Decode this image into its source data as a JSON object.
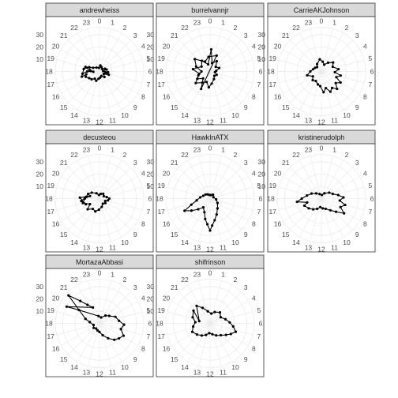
{
  "chart_data": {
    "type": "polar-line",
    "facet_layout": "3x3",
    "angular_axis": {
      "labels": [
        "0",
        "1",
        "2",
        "3",
        "4",
        "5",
        "6",
        "7",
        "8",
        "9",
        "10",
        "11",
        "12",
        "13",
        "14",
        "15",
        "16",
        "17",
        "18",
        "19",
        "20",
        "21",
        "22",
        "23"
      ]
    },
    "radial_axis": {
      "range": [
        0,
        36
      ],
      "ticks": [
        10,
        20,
        30
      ],
      "tick_labels": [
        "10",
        "20",
        "30"
      ]
    },
    "grid": true,
    "panels": [
      {
        "name": "andrewheiss",
        "points": [
          {
            "hour": 18.0,
            "value": 10
          },
          {
            "hour": 17.5,
            "value": 14
          },
          {
            "hour": 18.4,
            "value": 8
          },
          {
            "hour": 19.2,
            "value": 12
          },
          {
            "hour": 20.0,
            "value": 6
          },
          {
            "hour": 21.5,
            "value": 4
          },
          {
            "hour": 23.5,
            "value": 3
          },
          {
            "hour": 0.5,
            "value": 5
          },
          {
            "hour": 1.6,
            "value": 4
          },
          {
            "hour": 3.0,
            "value": 3
          },
          {
            "hour": 4.2,
            "value": 5
          },
          {
            "hour": 5.0,
            "value": 6
          },
          {
            "hour": 5.6,
            "value": 3
          },
          {
            "hour": 6.3,
            "value": 7
          },
          {
            "hour": 6.8,
            "value": 5
          },
          {
            "hour": 7.3,
            "value": 8
          },
          {
            "hour": 8.0,
            "value": 4
          },
          {
            "hour": 9.2,
            "value": 6
          },
          {
            "hour": 10.5,
            "value": 4
          },
          {
            "hour": 11.6,
            "value": 5
          },
          {
            "hour": 12.5,
            "value": 6
          },
          {
            "hour": 13.3,
            "value": 8
          },
          {
            "hour": 14.2,
            "value": 7
          },
          {
            "hour": 15.0,
            "value": 9
          },
          {
            "hour": 15.8,
            "value": 10
          },
          {
            "hour": 16.6,
            "value": 12
          },
          {
            "hour": 17.2,
            "value": 11
          },
          {
            "hour": 16.9,
            "value": 15
          },
          {
            "hour": 18.6,
            "value": 13
          },
          {
            "hour": 19.5,
            "value": 9
          },
          {
            "hour": 18.2,
            "value": 7
          },
          {
            "hour": 17.8,
            "value": 5
          }
        ]
      },
      {
        "name": "burrelvannjr",
        "points": [
          {
            "hour": 16.0,
            "value": 12
          },
          {
            "hour": 17.2,
            "value": 9
          },
          {
            "hour": 18.5,
            "value": 14
          },
          {
            "hour": 20.0,
            "value": 8
          },
          {
            "hour": 21.5,
            "value": 11
          },
          {
            "hour": 23.0,
            "value": 6
          },
          {
            "hour": 0.2,
            "value": 18
          },
          {
            "hour": 0.9,
            "value": 7
          },
          {
            "hour": 2.2,
            "value": 10
          },
          {
            "hour": 3.4,
            "value": 6
          },
          {
            "hour": 4.6,
            "value": 8
          },
          {
            "hour": 5.6,
            "value": 5
          },
          {
            "hour": 6.5,
            "value": 4
          },
          {
            "hour": 7.8,
            "value": 6
          },
          {
            "hour": 9.0,
            "value": 5
          },
          {
            "hour": 10.2,
            "value": 7
          },
          {
            "hour": 11.5,
            "value": 10
          },
          {
            "hour": 12.3,
            "value": 13
          },
          {
            "hour": 13.2,
            "value": 9
          },
          {
            "hour": 14.3,
            "value": 11
          },
          {
            "hour": 15.4,
            "value": 15
          },
          {
            "hour": 16.8,
            "value": 10
          },
          {
            "hour": 18.0,
            "value": 7
          },
          {
            "hour": 19.3,
            "value": 12
          },
          {
            "hour": 20.6,
            "value": 16
          },
          {
            "hour": 22.2,
            "value": 9
          },
          {
            "hour": 23.6,
            "value": 12
          },
          {
            "hour": 1.5,
            "value": 14
          },
          {
            "hour": 13.8,
            "value": 16
          },
          {
            "hour": 15.0,
            "value": 8
          }
        ]
      },
      {
        "name": "CarrieAKJohnson",
        "points": [
          {
            "hour": 23.5,
            "value": 10
          },
          {
            "hour": 0.5,
            "value": 8
          },
          {
            "hour": 1.5,
            "value": 6
          },
          {
            "hour": 2.5,
            "value": 9
          },
          {
            "hour": 3.5,
            "value": 12
          },
          {
            "hour": 4.5,
            "value": 10
          },
          {
            "hour": 5.5,
            "value": 14
          },
          {
            "hour": 6.2,
            "value": 11
          },
          {
            "hour": 6.8,
            "value": 16
          },
          {
            "hour": 7.4,
            "value": 13
          },
          {
            "hour": 8.0,
            "value": 18
          },
          {
            "hour": 8.6,
            "value": 15
          },
          {
            "hour": 9.2,
            "value": 19
          },
          {
            "hour": 9.8,
            "value": 16
          },
          {
            "hour": 10.4,
            "value": 18
          },
          {
            "hour": 11.0,
            "value": 14
          },
          {
            "hour": 11.6,
            "value": 17
          },
          {
            "hour": 12.3,
            "value": 12
          },
          {
            "hour": 13.0,
            "value": 11
          },
          {
            "hour": 14.0,
            "value": 9
          },
          {
            "hour": 15.0,
            "value": 10
          },
          {
            "hour": 16.0,
            "value": 8
          },
          {
            "hour": 17.0,
            "value": 12
          },
          {
            "hour": 18.0,
            "value": 9
          },
          {
            "hour": 19.0,
            "value": 7
          },
          {
            "hour": 20.0,
            "value": 6
          },
          {
            "hour": 21.0,
            "value": 5
          },
          {
            "hour": 22.0,
            "value": 7
          }
        ]
      },
      {
        "name": "decusteou",
        "points": [
          {
            "hour": 16.5,
            "value": 12
          },
          {
            "hour": 17.5,
            "value": 15
          },
          {
            "hour": 18.5,
            "value": 11
          },
          {
            "hour": 19.5,
            "value": 10
          },
          {
            "hour": 20.5,
            "value": 8
          },
          {
            "hour": 22.0,
            "value": 5
          },
          {
            "hour": 23.5,
            "value": 3
          },
          {
            "hour": 1.0,
            "value": 4
          },
          {
            "hour": 2.5,
            "value": 5
          },
          {
            "hour": 4.0,
            "value": 4
          },
          {
            "hour": 5.2,
            "value": 6
          },
          {
            "hour": 6.0,
            "value": 8
          },
          {
            "hour": 6.8,
            "value": 7
          },
          {
            "hour": 7.5,
            "value": 5
          },
          {
            "hour": 8.5,
            "value": 6
          },
          {
            "hour": 9.8,
            "value": 5
          },
          {
            "hour": 11.0,
            "value": 7
          },
          {
            "hour": 12.2,
            "value": 9
          },
          {
            "hour": 13.2,
            "value": 11
          },
          {
            "hour": 14.2,
            "value": 10
          },
          {
            "hour": 15.2,
            "value": 13
          },
          {
            "hour": 16.0,
            "value": 9
          },
          {
            "hour": 17.0,
            "value": 14
          },
          {
            "hour": 18.0,
            "value": 12
          },
          {
            "hour": 19.0,
            "value": 8
          },
          {
            "hour": 18.2,
            "value": 16
          }
        ]
      },
      {
        "name": "HawkInATX",
        "points": [
          {
            "hour": 22.0,
            "value": 4
          },
          {
            "hour": 23.5,
            "value": 3
          },
          {
            "hour": 1.0,
            "value": 3
          },
          {
            "hour": 2.5,
            "value": 4
          },
          {
            "hour": 4.5,
            "value": 3
          },
          {
            "hour": 6.5,
            "value": 5
          },
          {
            "hour": 8.0,
            "value": 7
          },
          {
            "hour": 9.5,
            "value": 10
          },
          {
            "hour": 10.5,
            "value": 14
          },
          {
            "hour": 11.2,
            "value": 18
          },
          {
            "hour": 11.7,
            "value": 22
          },
          {
            "hour": 12.0,
            "value": 26
          },
          {
            "hour": 12.4,
            "value": 21
          },
          {
            "hour": 12.9,
            "value": 17
          },
          {
            "hour": 13.5,
            "value": 12
          },
          {
            "hour": 14.5,
            "value": 9
          },
          {
            "hour": 15.2,
            "value": 13
          },
          {
            "hour": 15.8,
            "value": 18
          },
          {
            "hour": 16.3,
            "value": 23
          },
          {
            "hour": 16.8,
            "value": 16
          },
          {
            "hour": 17.5,
            "value": 11
          },
          {
            "hour": 18.5,
            "value": 8
          },
          {
            "hour": 19.5,
            "value": 6
          },
          {
            "hour": 20.8,
            "value": 5
          }
        ]
      },
      {
        "name": "kristinerudolph",
        "points": [
          {
            "hour": 17.5,
            "value": 20
          },
          {
            "hour": 18.0,
            "value": 16
          },
          {
            "hour": 18.8,
            "value": 12
          },
          {
            "hour": 19.8,
            "value": 9
          },
          {
            "hour": 21.0,
            "value": 6
          },
          {
            "hour": 22.5,
            "value": 4
          },
          {
            "hour": 0.5,
            "value": 3
          },
          {
            "hour": 2.0,
            "value": 5
          },
          {
            "hour": 3.5,
            "value": 8
          },
          {
            "hour": 4.5,
            "value": 10
          },
          {
            "hour": 5.2,
            "value": 14
          },
          {
            "hour": 5.8,
            "value": 18
          },
          {
            "hour": 6.4,
            "value": 15
          },
          {
            "hour": 7.0,
            "value": 20
          },
          {
            "hour": 7.6,
            "value": 17
          },
          {
            "hour": 8.2,
            "value": 22
          },
          {
            "hour": 8.8,
            "value": 16
          },
          {
            "hour": 9.5,
            "value": 12
          },
          {
            "hour": 10.5,
            "value": 9
          },
          {
            "hour": 11.5,
            "value": 8
          },
          {
            "hour": 12.5,
            "value": 7
          },
          {
            "hour": 13.5,
            "value": 9
          },
          {
            "hour": 14.5,
            "value": 11
          },
          {
            "hour": 15.5,
            "value": 13
          },
          {
            "hour": 16.5,
            "value": 15
          },
          {
            "hour": 17.0,
            "value": 12
          }
        ]
      },
      {
        "name": "MortazaAbbasi",
        "points": [
          {
            "hour": 20.8,
            "value": 34
          },
          {
            "hour": 21.3,
            "value": 24
          },
          {
            "hour": 21.8,
            "value": 18
          },
          {
            "hour": 22.5,
            "value": 14
          },
          {
            "hour": 19.8,
            "value": 30
          },
          {
            "hour": 20.2,
            "value": 20
          },
          {
            "hour": 23.5,
            "value": 6
          },
          {
            "hour": 1.0,
            "value": 5
          },
          {
            "hour": 2.5,
            "value": 8
          },
          {
            "hour": 3.5,
            "value": 10
          },
          {
            "hour": 4.5,
            "value": 14
          },
          {
            "hour": 5.5,
            "value": 16
          },
          {
            "hour": 6.2,
            "value": 20
          },
          {
            "hour": 7.0,
            "value": 18
          },
          {
            "hour": 7.8,
            "value": 22
          },
          {
            "hour": 8.5,
            "value": 20
          },
          {
            "hour": 9.2,
            "value": 18
          },
          {
            "hour": 10.0,
            "value": 14
          },
          {
            "hour": 11.0,
            "value": 10
          },
          {
            "hour": 12.0,
            "value": 7
          },
          {
            "hour": 13.0,
            "value": 6
          },
          {
            "hour": 14.2,
            "value": 5
          },
          {
            "hour": 15.5,
            "value": 6
          },
          {
            "hour": 17.0,
            "value": 5
          },
          {
            "hour": 18.5,
            "value": 8
          },
          {
            "hour": 19.2,
            "value": 12
          }
        ]
      },
      {
        "name": "shifrinson",
        "points": [
          {
            "hour": 21.5,
            "value": 18
          },
          {
            "hour": 22.3,
            "value": 14
          },
          {
            "hour": 23.3,
            "value": 10
          },
          {
            "hour": 0.5,
            "value": 8
          },
          {
            "hour": 1.5,
            "value": 10
          },
          {
            "hour": 2.8,
            "value": 12
          },
          {
            "hour": 4.0,
            "value": 10
          },
          {
            "hour": 5.0,
            "value": 13
          },
          {
            "hour": 5.8,
            "value": 16
          },
          {
            "hour": 6.5,
            "value": 19
          },
          {
            "hour": 7.2,
            "value": 22
          },
          {
            "hour": 7.8,
            "value": 19
          },
          {
            "hour": 8.4,
            "value": 16
          },
          {
            "hour": 9.2,
            "value": 13
          },
          {
            "hour": 10.2,
            "value": 11
          },
          {
            "hour": 11.2,
            "value": 9
          },
          {
            "hour": 12.3,
            "value": 8
          },
          {
            "hour": 13.3,
            "value": 10
          },
          {
            "hour": 14.3,
            "value": 12
          },
          {
            "hour": 15.3,
            "value": 14
          },
          {
            "hour": 16.3,
            "value": 16
          },
          {
            "hour": 17.3,
            "value": 14
          },
          {
            "hour": 18.3,
            "value": 12
          },
          {
            "hour": 19.3,
            "value": 15
          },
          {
            "hour": 20.5,
            "value": 17
          },
          {
            "hour": 18.8,
            "value": 9
          }
        ]
      }
    ]
  }
}
